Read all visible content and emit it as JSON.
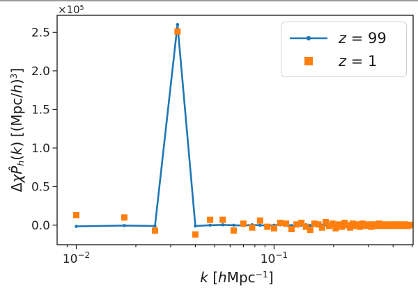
{
  "figure": {
    "background": "#ffffff",
    "offset": {
      "base": "×10",
      "exp": "5"
    }
  },
  "labels": {
    "ylabel": {
      "p0": "Δ",
      "p1": "χP̂",
      "p2": "h",
      "p3": "(",
      "p4": "k",
      "p5": ") [(Mpc/",
      "p6": "h",
      "p7": ")",
      "p8": "3",
      "p9": "]"
    },
    "xlabel": {
      "p0": "k",
      "p1": " [",
      "p2": "h",
      "p3": "Mpc",
      "p4": "−1",
      "p5": "]"
    }
  },
  "legend": {
    "position": "upper right",
    "entries": [
      {
        "sym": "z",
        "rest": " = 99",
        "color": "#1f77b4",
        "marker": "line-dot"
      },
      {
        "sym": "z",
        "rest": " = 1",
        "color": "#ff7f0e",
        "marker": "square"
      }
    ]
  },
  "axes": {
    "x": {
      "scale": "log",
      "major": [
        {
          "k": 0.01,
          "base": "10",
          "exp": "−2"
        },
        {
          "k": 0.1,
          "base": "10",
          "exp": "−1"
        }
      ],
      "minor": [
        0.009,
        0.02,
        0.03,
        0.04,
        0.05,
        0.06,
        0.07,
        0.08,
        0.09,
        0.2,
        0.3,
        0.4,
        0.5
      ]
    },
    "y": {
      "ticks": [
        {
          "v": 0,
          "label": "0.0"
        },
        {
          "v": 50000,
          "label": "0.5"
        },
        {
          "v": 100000,
          "label": "1.0"
        },
        {
          "v": 150000,
          "label": "1.5"
        },
        {
          "v": 200000,
          "label": "2.0"
        },
        {
          "v": 250000,
          "label": "2.5"
        }
      ]
    }
  },
  "chart_data": {
    "type": "line+scatter",
    "title": "",
    "xlabel": "k [hMpc⁻¹]",
    "ylabel": "ΔχP̂h(k) [(Mpc/h)³]",
    "xscale": "log",
    "yscale": "linear",
    "grid": false,
    "xlim": [
      0.008,
      0.505
    ],
    "ylim": [
      -25300,
      272000
    ],
    "legend_position": "upper right",
    "k": [
      0.01,
      0.0175,
      0.025,
      0.0325,
      0.04,
      0.0475,
      0.055,
      0.0625,
      0.07,
      0.0775,
      0.085,
      0.0925,
      0.1,
      0.1075,
      0.115,
      0.1225,
      0.13,
      0.1375,
      0.145,
      0.1525,
      0.16,
      0.1675,
      0.175,
      0.1825,
      0.19,
      0.1975,
      0.205,
      0.2125,
      0.22,
      0.2275,
      0.235,
      0.2425,
      0.25,
      0.2575,
      0.265,
      0.2725,
      0.28,
      0.2875,
      0.295,
      0.3025,
      0.31,
      0.3175,
      0.325,
      0.3325,
      0.34,
      0.3475,
      0.355,
      0.3625,
      0.37,
      0.3775,
      0.385,
      0.3925,
      0.4,
      0.4075,
      0.415,
      0.4225,
      0.43,
      0.4375,
      0.445,
      0.4525,
      0.46,
      0.4675,
      0.475,
      0.4825,
      0.49
    ],
    "series": [
      {
        "name": "z = 99",
        "style": "line",
        "marker": "circle",
        "color": "#1f77b4",
        "values": [
          -1500,
          -500,
          -1000,
          260000,
          -1000,
          0,
          500,
          0,
          -500,
          500,
          0,
          -500,
          0,
          500,
          0,
          -500,
          0,
          0,
          500,
          -500,
          0,
          0,
          0,
          500,
          0,
          0,
          -500,
          0,
          0,
          0,
          500,
          0,
          0,
          0,
          -500,
          0,
          0,
          0,
          0,
          500,
          0,
          0,
          0,
          0,
          0,
          -500,
          0,
          0,
          0,
          0,
          500,
          0,
          0,
          0,
          0,
          0,
          -500,
          0,
          0,
          0,
          0,
          0,
          0,
          0,
          0
        ]
      },
      {
        "name": "z = 1",
        "style": "scatter",
        "marker": "square",
        "color": "#ff7f0e",
        "values": [
          13000,
          10000,
          -7000,
          251000,
          -12000,
          7000,
          7000,
          -7000,
          2000,
          -3000,
          6000,
          -2000,
          -4000,
          3000,
          2000,
          -5000,
          1000,
          3000,
          -2000,
          -6000,
          2000,
          1000,
          -3000,
          4000,
          -1000,
          2000,
          -4000,
          1000,
          -2000,
          3000,
          0,
          -3000,
          2000,
          -1000,
          1000,
          -2000,
          2000,
          0,
          -1000,
          1000,
          -2000,
          1000,
          0,
          -1000,
          2000,
          -1000,
          0,
          1000,
          -1000,
          0,
          1000,
          -1000,
          0,
          1000,
          0,
          -1000,
          1000,
          0,
          -1000,
          0,
          1000,
          0,
          -1000,
          0,
          500
        ]
      }
    ]
  }
}
